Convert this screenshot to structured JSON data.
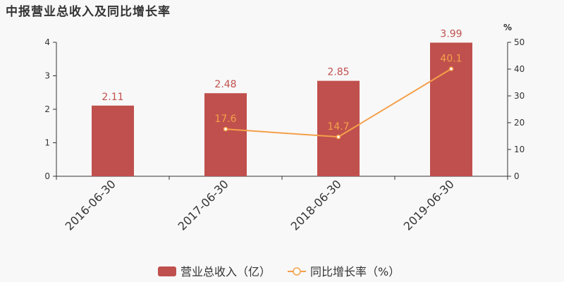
{
  "chart_data": {
    "type": "bar",
    "title": "中报营业总收入及同比增长率",
    "categories": [
      "2016-06-30",
      "2017-06-30",
      "2018-06-30",
      "2019-06-30"
    ],
    "series": [
      {
        "name": "营业总收入（亿）",
        "type": "bar",
        "axis": "left",
        "values": [
          2.11,
          2.48,
          2.85,
          3.99
        ],
        "labels": [
          "2.11",
          "2.48",
          "2.85",
          "3.99"
        ],
        "color": "#c0504d"
      },
      {
        "name": "同比增长率（%）",
        "type": "line",
        "axis": "right",
        "values": [
          null,
          17.6,
          14.7,
          40.1
        ],
        "labels": [
          "",
          "17.6",
          "14.7",
          "40.1"
        ],
        "color": "#f4a04a"
      }
    ],
    "y_left": {
      "min": 0,
      "max": 4,
      "ticks": [
        "0",
        "1",
        "2",
        "3",
        "4"
      ]
    },
    "y_right": {
      "min": 0,
      "max": 50,
      "ticks": [
        "0",
        "10",
        "20",
        "30",
        "40",
        "50"
      ],
      "unit": "%"
    },
    "legend": "bottom",
    "grid": false
  }
}
